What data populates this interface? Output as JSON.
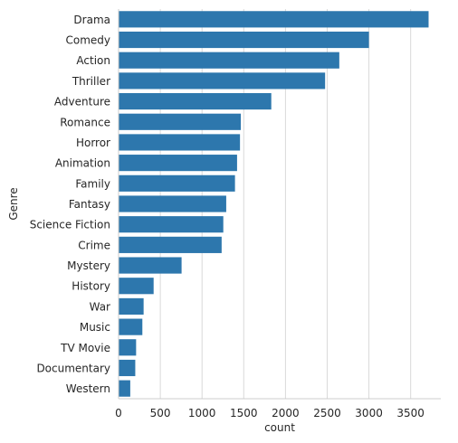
{
  "chart_data": {
    "type": "bar",
    "orientation": "horizontal",
    "categories": [
      "Drama",
      "Comedy",
      "Action",
      "Thriller",
      "Adventure",
      "Romance",
      "Horror",
      "Animation",
      "Family",
      "Fantasy",
      "Science Fiction",
      "Crime",
      "Mystery",
      "History",
      "War",
      "Music",
      "TV Movie",
      "Documentary",
      "Western"
    ],
    "values": [
      3715,
      3000,
      2645,
      2475,
      1830,
      1465,
      1455,
      1420,
      1395,
      1290,
      1255,
      1235,
      755,
      420,
      300,
      285,
      210,
      200,
      140
    ],
    "xlabel": "count",
    "ylabel": "Genre",
    "xlim": [
      0,
      3900
    ],
    "xticks": [
      0,
      500,
      1000,
      1500,
      2000,
      2500,
      3000,
      3500
    ],
    "grid": "vertical",
    "bar_color": "#2d77ad",
    "grid_color": "#d9d9d9",
    "text_color": "#262626"
  }
}
